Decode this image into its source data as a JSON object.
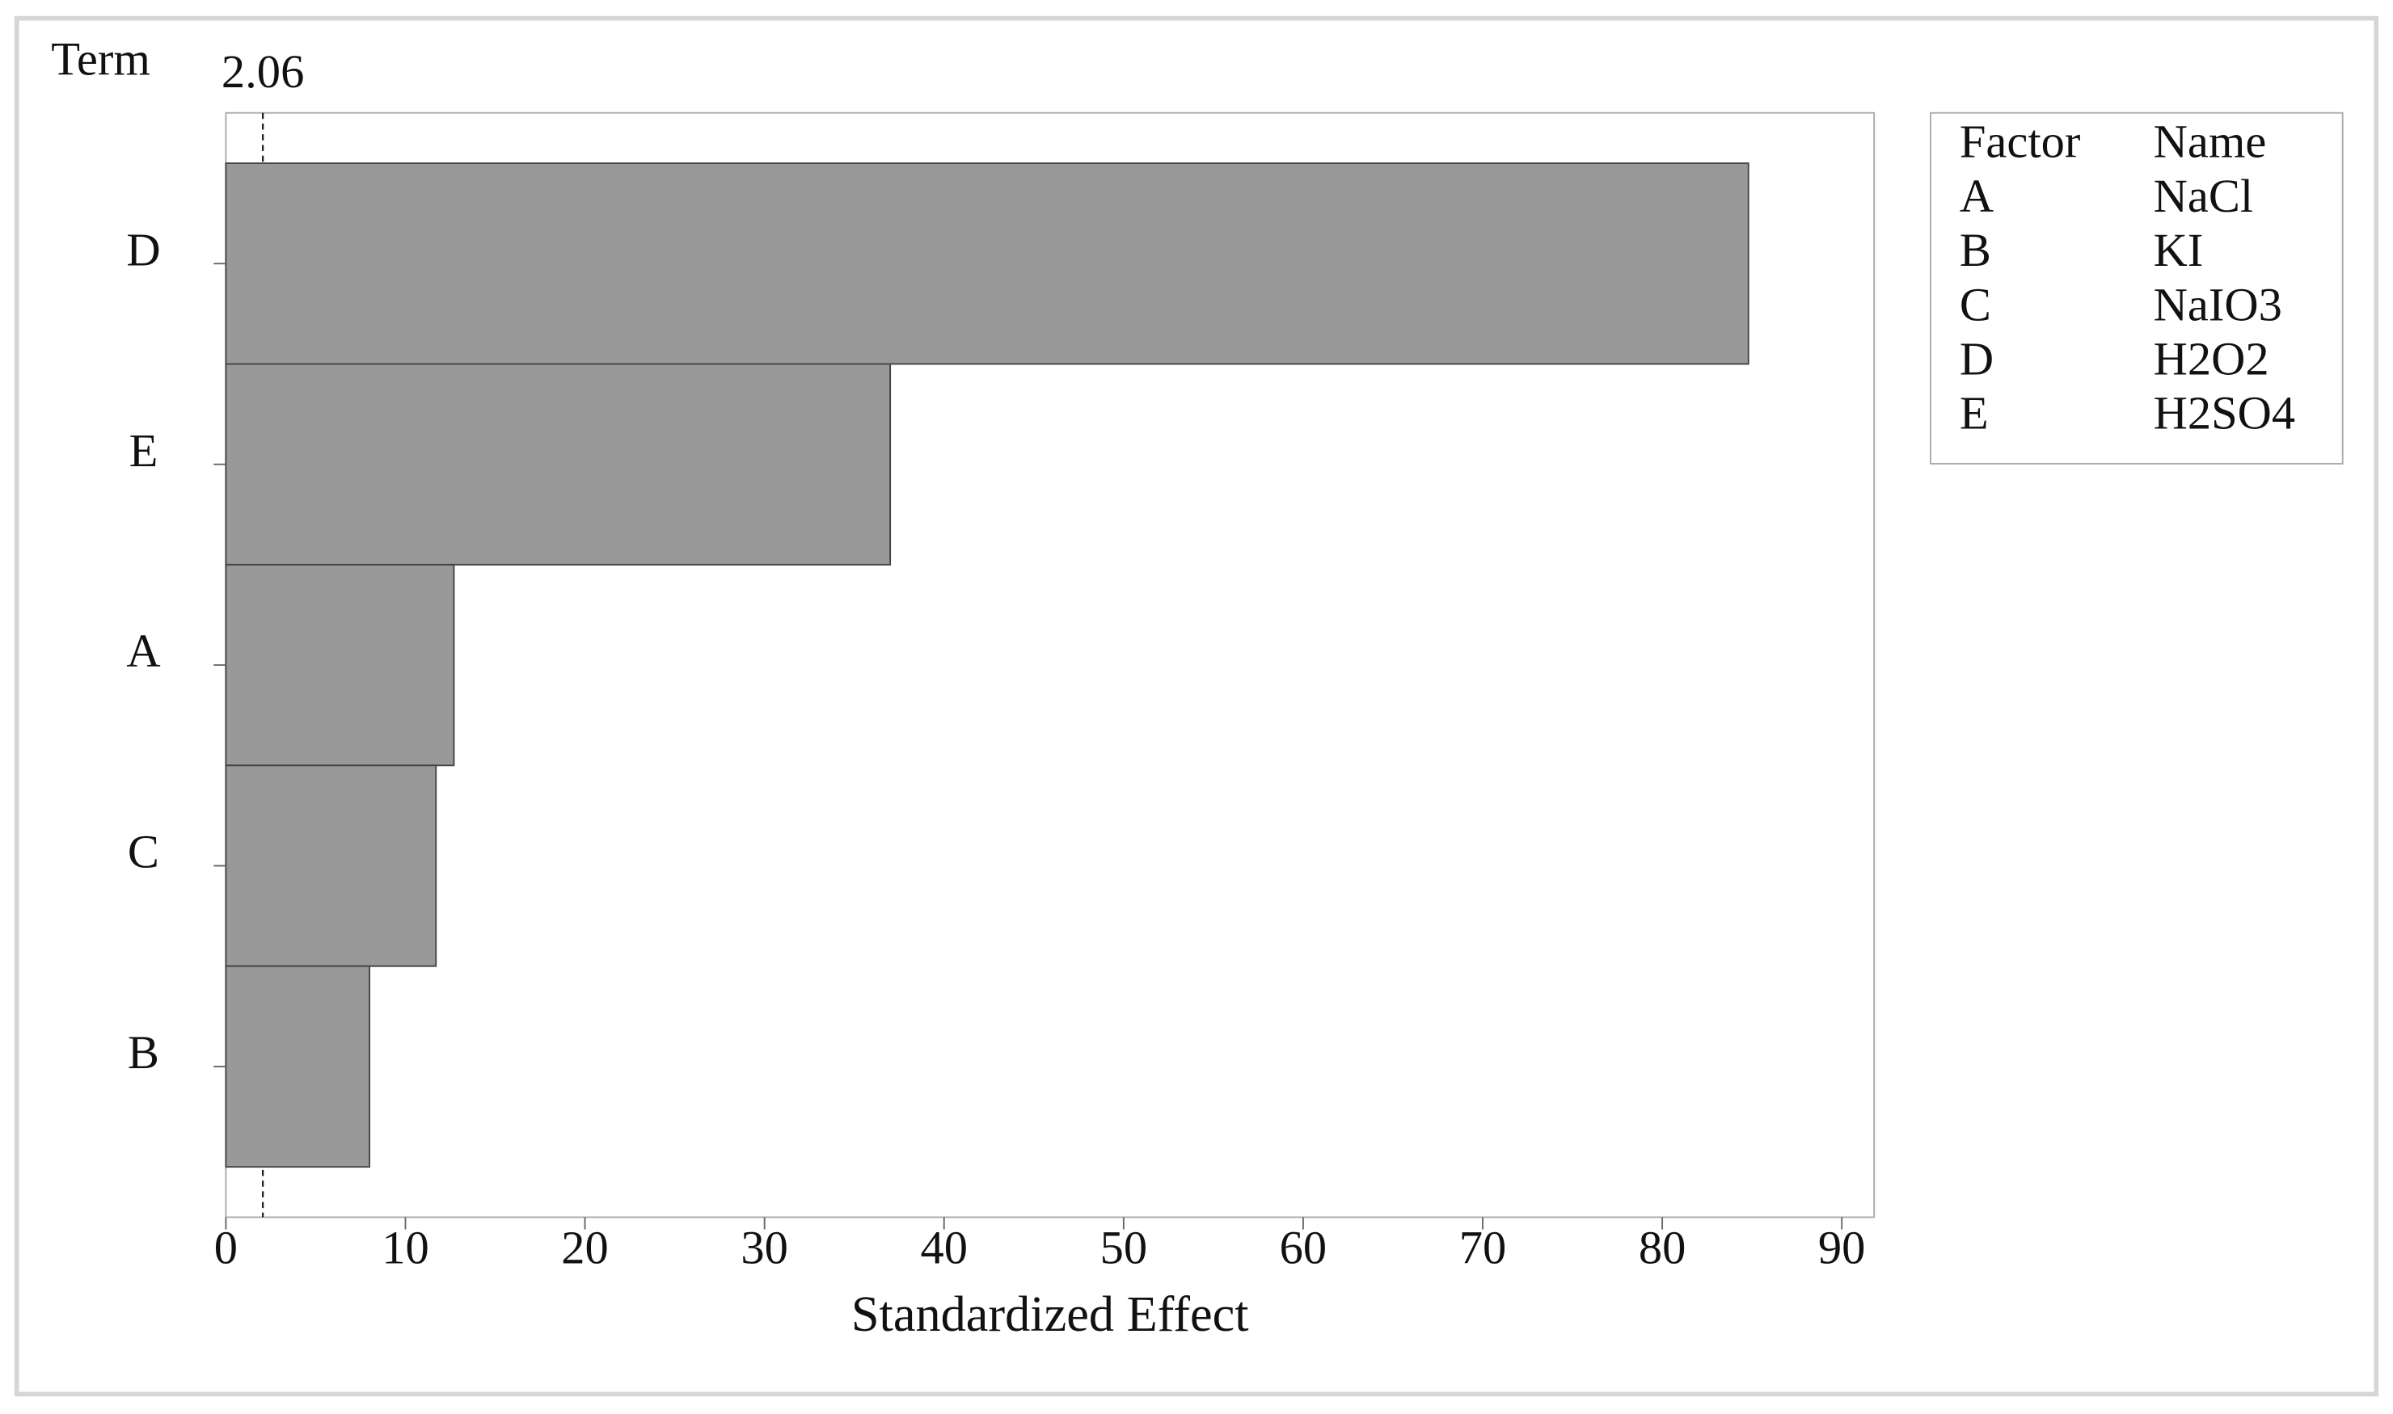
{
  "chart_data": {
    "type": "bar",
    "orientation": "horizontal",
    "y_label": "Term",
    "x_label": "Standardized Effect",
    "categories": [
      "D",
      "E",
      "A",
      "C",
      "B"
    ],
    "values": [
      84.8,
      37.0,
      12.7,
      11.7,
      8.0
    ],
    "color": "#999999",
    "xlim": [
      0,
      91.8
    ],
    "xticks": [
      0,
      10,
      20,
      30,
      40,
      50,
      60,
      70,
      80,
      90
    ],
    "reference_line": 2.06,
    "legend_table": {
      "headers": [
        "Factor",
        "Name"
      ],
      "rows": [
        [
          "A",
          "NaCl"
        ],
        [
          "B",
          "KI"
        ],
        [
          "C",
          "NaIO3"
        ],
        [
          "D",
          "H2O2"
        ],
        [
          "E",
          "H2SO4"
        ]
      ]
    }
  }
}
